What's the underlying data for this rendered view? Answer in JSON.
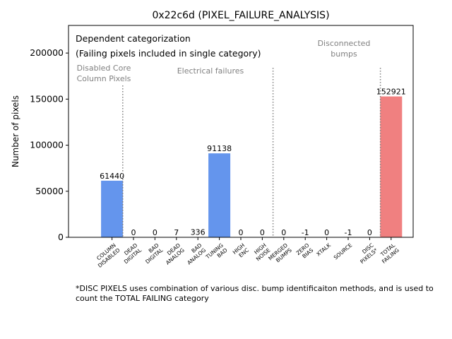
{
  "chart_data": {
    "type": "bar",
    "title": "0x22c6d (PIXEL_FAILURE_ANALYSIS)",
    "xlabel": "",
    "ylabel": "Number of pixels",
    "ylim": [
      0,
      230000
    ],
    "yticks": [
      0,
      50000,
      100000,
      150000,
      200000
    ],
    "categories": [
      "COLUMN\nDISABLED",
      "DEAD\nDIGITAL",
      "BAD\nDIGITAL",
      "DEAD\nANALOG",
      "BAD\nANALOG",
      "TUNING\nBAD",
      "HIGH\nENC",
      "HIGH\nNOISE",
      "MERGED\nBUMPS",
      "ZERO\nBIAS",
      "XTALK",
      "SOURCE",
      "DISC\nPIXELS*",
      "TOTAL\nFAILING"
    ],
    "values": [
      61440,
      0,
      0,
      7,
      336,
      91138,
      0,
      0,
      0,
      -1,
      0,
      -1,
      0,
      152921
    ],
    "bar_colors": [
      "#6495ED",
      "#6495ED",
      "#6495ED",
      "#6495ED",
      "#6495ED",
      "#6495ED",
      "#6495ED",
      "#6495ED",
      "#6495ED",
      "#6495ED",
      "#6495ED",
      "#6495ED",
      "#6495ED",
      "#F08080"
    ],
    "legend_text": [
      "Dependent categorization",
      "(Failing pixels included in single category)"
    ],
    "annotations": [
      {
        "text": "Disabled Core\nColumn Pixels",
        "category_index": 0
      },
      {
        "text": "Electrical failures",
        "category_index": 4
      },
      {
        "text": "Disconnected\nbumps",
        "category_index": 11
      }
    ],
    "separators_after_index": [
      0,
      7,
      12
    ],
    "grid": false
  },
  "footnote": "*DISC PIXELS uses combination of various disc. bump identificaiton methods, and is used to count the TOTAL FAILING category"
}
